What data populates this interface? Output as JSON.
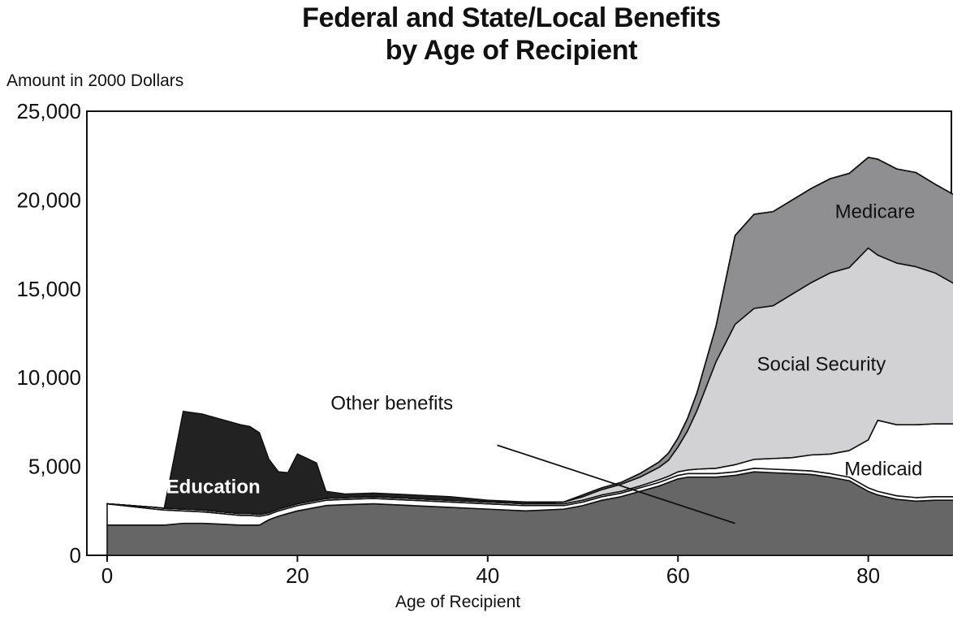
{
  "chart_data": {
    "type": "area",
    "stacked": true,
    "title": [
      "Federal and State/Local Benefits",
      "by Age of Recipient"
    ],
    "ylabel": "Amount in 2000 Dollars",
    "xlabel": "Age of Recipient",
    "xlim": [
      0,
      89
    ],
    "ylim": [
      0,
      25000
    ],
    "x_ticks": [
      0,
      20,
      40,
      60,
      80
    ],
    "x_tick_labels": [
      "0",
      "20",
      "40",
      "60",
      "80"
    ],
    "y_ticks": [
      0,
      5000,
      10000,
      15000,
      20000,
      25000
    ],
    "y_tick_labels": [
      "0",
      "5,000",
      "10,000",
      "15,000",
      "20,000",
      "25,000"
    ],
    "grid": false,
    "x": [
      0,
      5,
      6,
      8,
      10,
      12,
      14,
      15,
      16,
      17,
      18,
      19,
      20,
      22,
      23,
      25,
      28,
      32,
      36,
      40,
      44,
      48,
      50,
      52,
      54,
      56,
      58,
      59,
      60,
      61,
      62,
      64,
      66,
      68,
      70,
      72,
      74,
      76,
      78,
      80,
      81,
      83,
      85,
      87,
      89
    ],
    "series": [
      {
        "name": "Other benefits",
        "color": "#666666",
        "values": [
          1700,
          1700,
          1700,
          1800,
          1800,
          1750,
          1700,
          1700,
          1700,
          2000,
          2200,
          2350,
          2500,
          2700,
          2800,
          2850,
          2900,
          2800,
          2700,
          2600,
          2500,
          2600,
          2800,
          3100,
          3300,
          3600,
          3900,
          4100,
          4300,
          4400,
          4400,
          4400,
          4500,
          4700,
          4650,
          4600,
          4550,
          4400,
          4200,
          3600,
          3400,
          3150,
          3050,
          3100,
          3100
        ]
      },
      {
        "name": "",
        "color": "#ffffff",
        "values": [
          1200,
          900,
          850,
          700,
          650,
          600,
          550,
          550,
          500,
          300,
          300,
          300,
          300,
          300,
          300,
          300,
          300,
          300,
          300,
          300,
          300,
          200,
          200,
          200,
          200,
          200,
          200,
          200,
          200,
          200,
          200,
          200,
          200,
          200,
          200,
          200,
          200,
          200,
          200,
          200,
          200,
          200,
          200,
          200,
          200
        ]
      },
      {
        "name": "Medicaid",
        "color": "#ffffff",
        "values": [
          0,
          100,
          100,
          100,
          100,
          100,
          100,
          100,
          100,
          100,
          100,
          100,
          100,
          100,
          100,
          100,
          100,
          100,
          100,
          100,
          100,
          100,
          100,
          100,
          100,
          100,
          150,
          150,
          200,
          200,
          250,
          300,
          400,
          500,
          600,
          700,
          900,
          1100,
          1500,
          2700,
          4000,
          4000,
          4100,
          4100,
          4100
        ]
      },
      {
        "name": "Social Security",
        "color": "#d2d2d4",
        "values": [
          0,
          0,
          0,
          0,
          0,
          0,
          0,
          0,
          0,
          0,
          0,
          0,
          0,
          0,
          0,
          0,
          0,
          0,
          0,
          0,
          0,
          100,
          200,
          300,
          400,
          500,
          700,
          900,
          1400,
          2200,
          3300,
          6000,
          7900,
          8500,
          8600,
          9200,
          9700,
          10200,
          10300,
          10800,
          9300,
          9100,
          8900,
          8500,
          7900
        ]
      },
      {
        "name": "Medicare",
        "color": "#8f8f92",
        "values": [
          0,
          0,
          0,
          0,
          0,
          0,
          0,
          0,
          0,
          0,
          0,
          0,
          0,
          0,
          0,
          0,
          0,
          0,
          0,
          0,
          0,
          0,
          100,
          100,
          100,
          200,
          300,
          400,
          500,
          700,
          1000,
          2000,
          5000,
          5300,
          5300,
          5300,
          5300,
          5300,
          5300,
          5100,
          5400,
          5300,
          5300,
          5000,
          5000
        ]
      },
      {
        "name": "Education",
        "color": "#222222",
        "values": [
          0,
          0,
          0,
          5500,
          5400,
          5200,
          5000,
          4900,
          4600,
          3000,
          2100,
          1900,
          2800,
          2100,
          400,
          200,
          200,
          200,
          200,
          100,
          100,
          0,
          0,
          0,
          0,
          0,
          0,
          0,
          0,
          0,
          0,
          0,
          0,
          0,
          0,
          0,
          0,
          0,
          0,
          0,
          0,
          0,
          0,
          0,
          0
        ]
      }
    ],
    "annotations": [
      {
        "text": "Education",
        "x": 6.2,
        "y": 3500,
        "color": "#ffffff",
        "bold": true
      },
      {
        "text": "Other benefits",
        "x": 23.5,
        "y": 8200,
        "color": "#111111",
        "bold": false
      },
      {
        "text": "Medicaid",
        "x": 77.5,
        "y": 4500,
        "color": "#111111",
        "bold": false
      },
      {
        "text": "Social Security",
        "x": 68.3,
        "y": 10400,
        "color": "#111111",
        "bold": false
      },
      {
        "text": "Medicare",
        "x": 76.5,
        "y": 19000,
        "color": "#111111",
        "bold": false
      }
    ],
    "leader_line": {
      "from": [
        41,
        6200
      ],
      "to": [
        66,
        1800
      ]
    }
  }
}
